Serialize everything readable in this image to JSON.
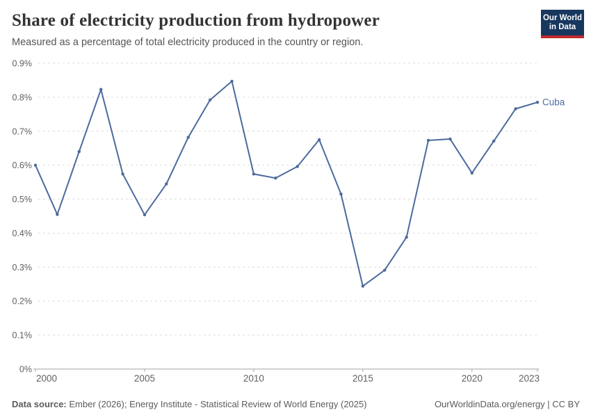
{
  "header": {
    "title": "Share of electricity production from hydropower",
    "subtitle": "Measured as a percentage of total electricity produced in the country or region.",
    "logo": {
      "line1": "Our World",
      "line2": "in Data",
      "bg_color": "#18375f",
      "bar_color": "#c0292e"
    }
  },
  "chart_data": {
    "type": "line",
    "title": "Share of electricity production from hydropower",
    "xlabel": "",
    "ylabel": "",
    "xlim": [
      2000,
      2023
    ],
    "ylim": [
      0,
      0.9
    ],
    "grid": "horizontal dashed",
    "legend": "end-of-line label",
    "x_ticks": [
      2000,
      2005,
      2010,
      2015,
      2020,
      2023
    ],
    "y_ticks": [
      {
        "v": 0,
        "label": "0%"
      },
      {
        "v": 0.1,
        "label": "0.1%"
      },
      {
        "v": 0.2,
        "label": "0.2%"
      },
      {
        "v": 0.3,
        "label": "0.3%"
      },
      {
        "v": 0.4,
        "label": "0.4%"
      },
      {
        "v": 0.5,
        "label": "0.5%"
      },
      {
        "v": 0.6,
        "label": "0.6%"
      },
      {
        "v": 0.7,
        "label": "0.7%"
      },
      {
        "v": 0.8,
        "label": "0.8%"
      },
      {
        "v": 0.9,
        "label": "0.9%"
      }
    ],
    "series": [
      {
        "name": "Cuba",
        "color": "#4C6A9C",
        "x": [
          2000,
          2001,
          2002,
          2003,
          2004,
          2005,
          2006,
          2007,
          2008,
          2009,
          2010,
          2011,
          2012,
          2013,
          2014,
          2015,
          2016,
          2017,
          2018,
          2019,
          2020,
          2021,
          2022,
          2023
        ],
        "values": [
          0.6,
          0.455,
          0.64,
          0.823,
          0.574,
          0.454,
          0.545,
          0.682,
          0.792,
          0.847,
          0.574,
          0.562,
          0.596,
          0.675,
          0.515,
          0.244,
          0.291,
          0.388,
          0.673,
          0.677,
          0.577,
          0.671,
          0.766,
          0.785
        ]
      }
    ],
    "axis_color": "#a3a3a3",
    "gridline_color": "#dcdcdc",
    "tick_label_color": "#606060"
  },
  "footer": {
    "source_label": "Data source:",
    "source_text": " Ember (2026); Energy Institute - Statistical Review of World Energy (2025)",
    "right_text": "OurWorldinData.org/energy | CC BY"
  }
}
